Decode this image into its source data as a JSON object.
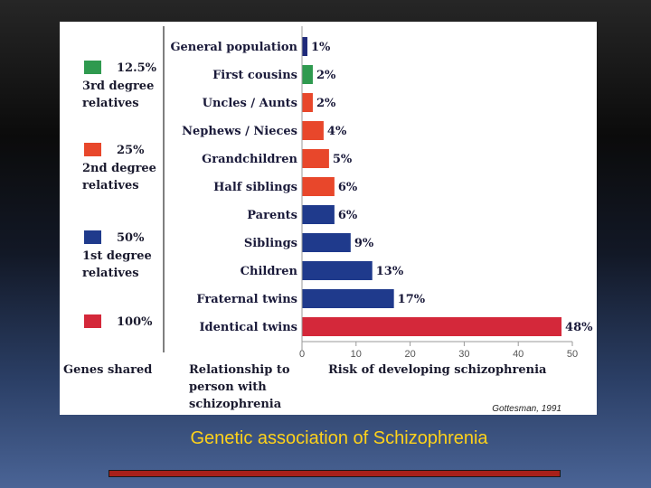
{
  "chart_data": {
    "type": "bar",
    "orientation": "horizontal",
    "categories": [
      "General population",
      "First cousins",
      "Uncles / Aunts",
      "Nephews / Nieces",
      "Grandchildren",
      "Half siblings",
      "Parents",
      "Siblings",
      "Children",
      "Fraternal twins",
      "Identical twins"
    ],
    "values": [
      1,
      2,
      2,
      4,
      5,
      6,
      6,
      9,
      13,
      17,
      48
    ],
    "value_labels": [
      "1%",
      "2%",
      "2%",
      "4%",
      "5%",
      "6%",
      "6%",
      "9%",
      "13%",
      "17%",
      "48%"
    ],
    "bar_colors": [
      "#1f2a7a",
      "#2f9a4f",
      "#e8472b",
      "#e8472b",
      "#e8472b",
      "#e8472b",
      "#1f3a8c",
      "#1f3a8c",
      "#1f3a8c",
      "#1f3a8c",
      "#d4283a"
    ],
    "xlabel": "Risk of developing schizophrenia",
    "ylabel": "Relationship to person with schizophrenia",
    "ylabel_lines": [
      "Relationship to",
      "person with",
      "schizophrenia"
    ],
    "xticks": [
      0,
      10,
      20,
      30,
      40,
      50
    ],
    "xlim": [
      0,
      50
    ],
    "legend_title": "Genes shared",
    "legend": [
      {
        "value": "12.5%",
        "lines": [
          "3rd degree",
          "relatives"
        ],
        "color": "#2f9a4f"
      },
      {
        "value": "25%",
        "lines": [
          "2nd degree",
          "relatives"
        ],
        "color": "#e8472b"
      },
      {
        "value": "50%",
        "lines": [
          "1st degree",
          "relatives"
        ],
        "color": "#1f3a8c"
      },
      {
        "value": "100%",
        "lines": [],
        "color": "#d4283a"
      }
    ],
    "legend_placement": "left",
    "grid": false,
    "source": "Gottesman, 1991"
  },
  "caption": "Genetic association of Schizophrenia"
}
